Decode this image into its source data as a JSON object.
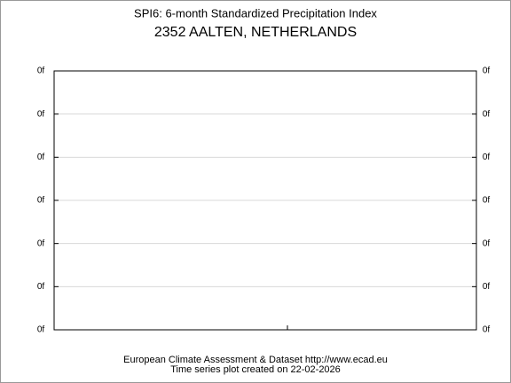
{
  "chart_data": {
    "type": "line",
    "title": "SPI6: 6-month Standardized Precipitation Index",
    "subtitle": "2352 AALTEN, NETHERLANDS",
    "footer": [
      "European Climate Assessment & Dataset  http://www.ecad.eu",
      "Time series plot created on 22-02-2026"
    ],
    "ylim": [
      -3,
      3
    ],
    "yticks": [
      {
        "value": -3,
        "label": "0f"
      },
      {
        "value": -2,
        "label": "0f"
      },
      {
        "value": -1,
        "label": "0f"
      },
      {
        "value": 0,
        "label": "0f"
      },
      {
        "value": 1,
        "label": "0f"
      },
      {
        "value": 2,
        "label": "0f"
      },
      {
        "value": 3,
        "label": "0f"
      }
    ],
    "grid": true
  }
}
